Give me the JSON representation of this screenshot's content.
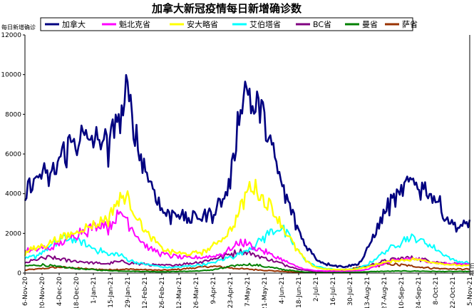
{
  "chart_data": {
    "type": "line",
    "title": "加拿大新冠疫情每日新增确诊数",
    "ylabel": "每日新增确诊",
    "xlabel": "",
    "ylim": [
      0,
      12000
    ],
    "yticks": [
      0,
      2000,
      4000,
      6000,
      8000,
      10000,
      12000
    ],
    "grid": false,
    "legend_position": "top",
    "x_tick_labels": [
      "6-Nov-20",
      "20-Nov-20",
      "4-Dec-20",
      "18-Dec-20",
      "1-Jan-21",
      "15-Jan-21",
      "29-Jan-21",
      "12-Feb-21",
      "26-Feb-21",
      "12-Mar-21",
      "26-Mar-21",
      "9-Apr-21",
      "23-Apr-21",
      "7-May-21",
      "21-May-21",
      "4-Jun-21",
      "18-Jun-21",
      "2-Jul-21",
      "16-Jul-21",
      "30-Jul-21",
      "13-Aug-21",
      "27-Aug-21",
      "10-Sep-21",
      "24-Sep-21",
      "8-Oct-21",
      "22-Oct-21",
      "5-Nov-21"
    ],
    "right_edge_labels": [
      "日",
      "期"
    ],
    "series": [
      {
        "name": "加拿大",
        "color": "#000080",
        "width": 2.6,
        "noise": 0.12,
        "values": [
          3800,
          4600,
          4800,
          5100,
          4700,
          5300,
          5900,
          6400,
          6600,
          7000,
          6700,
          6800,
          6700,
          7000,
          6000,
          8000,
          7800,
          9200,
          7700,
          6200,
          5300,
          4600,
          3800,
          3100,
          2900,
          3200,
          2900,
          2700,
          2800,
          2900,
          2900,
          3000,
          3400,
          3800,
          4400,
          6500,
          9000,
          9500,
          8300,
          8400,
          7700,
          6400,
          5200,
          4200,
          3400,
          2600,
          1800,
          1300,
          900,
          600,
          480,
          420,
          360,
          320,
          380,
          420,
          620,
          1200,
          1900,
          2500,
          3200,
          3700,
          3800,
          4300,
          4600,
          4500,
          4400,
          4200,
          3900,
          3500,
          2800,
          2600,
          2300,
          2400,
          2600
        ]
      },
      {
        "name": "魁北克省",
        "color": "#ff00ff",
        "width": 2,
        "noise": 0.12,
        "values": [
          1200,
          1100,
          1200,
          1300,
          1200,
          1400,
          1500,
          1700,
          1900,
          2100,
          2200,
          2300,
          2400,
          2600,
          2300,
          2800,
          3000,
          2800,
          2200,
          1800,
          1400,
          1200,
          1100,
          950,
          900,
          850,
          800,
          760,
          780,
          800,
          820,
          850,
          900,
          1000,
          1200,
          1400,
          1600,
          1500,
          1300,
          1200,
          1100,
          900,
          800,
          650,
          500,
          350,
          250,
          180,
          130,
          110,
          100,
          100,
          100,
          100,
          110,
          120,
          150,
          200,
          300,
          400,
          500,
          600,
          650,
          700,
          750,
          700,
          650,
          600,
          550,
          500,
          480,
          460,
          460,
          470,
          480
        ]
      },
      {
        "name": "安大略省",
        "color": "#ffff00",
        "width": 2.3,
        "noise": 0.1,
        "values": [
          1000,
          1200,
          1300,
          1400,
          1500,
          1700,
          1800,
          1900,
          2000,
          2200,
          2300,
          2400,
          2500,
          2700,
          2800,
          3500,
          3800,
          3900,
          3200,
          2700,
          2100,
          1800,
          1500,
          1200,
          1100,
          1050,
          1000,
          950,
          1000,
          1050,
          1100,
          1300,
          1600,
          1800,
          2100,
          2600,
          3400,
          4200,
          4500,
          4000,
          3600,
          3400,
          2800,
          2300,
          1800,
          1300,
          900,
          550,
          350,
          250,
          200,
          180,
          170,
          170,
          180,
          200,
          250,
          300,
          400,
          500,
          550,
          600,
          650,
          650,
          700,
          700,
          650,
          600,
          550,
          500,
          450,
          420,
          400,
          380,
          360
        ]
      },
      {
        "name": "艾伯塔省",
        "color": "#00ffff",
        "width": 2,
        "noise": 0.12,
        "values": [
          700,
          800,
          900,
          1100,
          1300,
          1500,
          1700,
          1800,
          1700,
          1600,
          1500,
          1300,
          1200,
          1100,
          900,
          1000,
          900,
          700,
          600,
          500,
          450,
          400,
          350,
          300,
          280,
          300,
          320,
          350,
          380,
          420,
          450,
          500,
          600,
          700,
          800,
          900,
          1000,
          1200,
          1400,
          1600,
          1900,
          2100,
          2300,
          2200,
          1800,
          1300,
          900,
          600,
          400,
          300,
          250,
          200,
          180,
          170,
          180,
          200,
          300,
          450,
          650,
          900,
          1100,
          1300,
          1500,
          1700,
          1800,
          1750,
          1650,
          1500,
          1300,
          1100,
          900,
          700,
          600,
          550,
          500
        ]
      },
      {
        "name": "BC省",
        "color": "#800080",
        "width": 2,
        "noise": 0.13,
        "values": [
          500,
          600,
          700,
          750,
          800,
          750,
          700,
          650,
          620,
          600,
          560,
          520,
          500,
          480,
          480,
          560,
          580,
          540,
          500,
          470,
          450,
          420,
          400,
          390,
          400,
          420,
          450,
          480,
          520,
          560,
          620,
          700,
          780,
          850,
          950,
          1050,
          1100,
          1050,
          950,
          850,
          750,
          650,
          550,
          450,
          350,
          250,
          180,
          130,
          100,
          90,
          90,
          100,
          110,
          130,
          160,
          200,
          260,
          350,
          450,
          550,
          620,
          680,
          720,
          760,
          780,
          750,
          700,
          650,
          600,
          550,
          500,
          480,
          460,
          450,
          440
        ]
      },
      {
        "name": "曼省",
        "color": "#008000",
        "width": 2,
        "noise": 0.15,
        "values": [
          350,
          380,
          400,
          420,
          380,
          340,
          300,
          280,
          250,
          220,
          200,
          180,
          160,
          140,
          130,
          120,
          110,
          100,
          90,
          85,
          80,
          75,
          70,
          70,
          75,
          80,
          85,
          90,
          100,
          110,
          130,
          160,
          200,
          260,
          320,
          380,
          420,
          450,
          420,
          380,
          330,
          280,
          230,
          180,
          140,
          100,
          70,
          50,
          40,
          35,
          30,
          30,
          30,
          35,
          40,
          45,
          55,
          65,
          75,
          85,
          90,
          95,
          100,
          100,
          100,
          100,
          95,
          90,
          85,
          80,
          80,
          80,
          80,
          80,
          80
        ]
      },
      {
        "name": "萨省",
        "color": "#993300",
        "width": 2,
        "noise": 0.15,
        "values": [
          150,
          180,
          200,
          230,
          260,
          290,
          300,
          280,
          260,
          240,
          220,
          200,
          190,
          180,
          170,
          180,
          190,
          200,
          190,
          180,
          170,
          160,
          150,
          150,
          160,
          180,
          200,
          230,
          260,
          290,
          320,
          340,
          330,
          300,
          270,
          240,
          220,
          200,
          180,
          160,
          140,
          120,
          100,
          80,
          60,
          45,
          35,
          30,
          30,
          30,
          40,
          60,
          100,
          150,
          200,
          250,
          300,
          350,
          400,
          420,
          450,
          450,
          430,
          400,
          370,
          340,
          300,
          270,
          250,
          230,
          220,
          210,
          200,
          200,
          200
        ]
      }
    ]
  }
}
